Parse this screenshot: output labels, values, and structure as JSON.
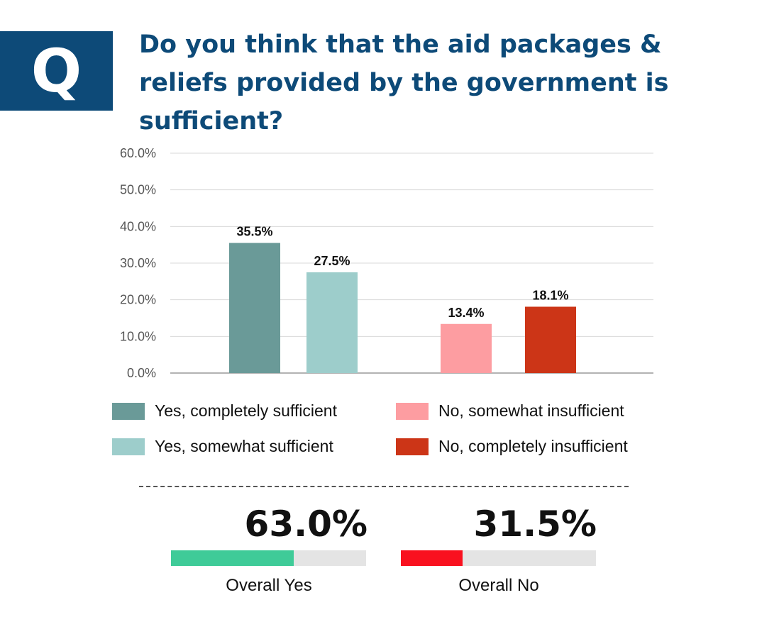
{
  "header": {
    "badge": "Q",
    "question": "Do you think that the aid packages & reliefs provided by the government is sufficient?"
  },
  "chart_data": {
    "type": "bar",
    "categories": [
      "Yes, completely sufficient",
      "Yes, somewhat sufficient",
      "No, somewhat insufficient",
      "No, completely insufficient"
    ],
    "values": [
      35.5,
      27.5,
      13.4,
      18.1
    ],
    "value_labels": [
      "35.5%",
      "27.5%",
      "13.4%",
      "18.1%"
    ],
    "colors": [
      "#6a9a98",
      "#9dcdcb",
      "#fd9da1",
      "#cc3517"
    ],
    "ylim": [
      0,
      60
    ],
    "yticks": [
      "0.0%",
      "10.0%",
      "20.0%",
      "30.0%",
      "40.0%",
      "50.0%",
      "60.0%"
    ],
    "grid": true,
    "legend_placement": "bottom"
  },
  "legend": [
    {
      "label": "Yes, completely sufficient",
      "color": "#6a9a98"
    },
    {
      "label": "Yes, somewhat sufficient",
      "color": "#9dcdcb"
    },
    {
      "label": "No, somewhat insufficient",
      "color": "#fd9da1"
    },
    {
      "label": "No, completely insufficient",
      "color": "#cc3517"
    }
  ],
  "summary": {
    "yes": {
      "value": "63.0%",
      "fraction": 0.63,
      "label": "Overall Yes",
      "color": "#3fcb98"
    },
    "no": {
      "value": "31.5%",
      "fraction": 0.315,
      "label": "Overall No",
      "color": "#f9111f"
    }
  }
}
